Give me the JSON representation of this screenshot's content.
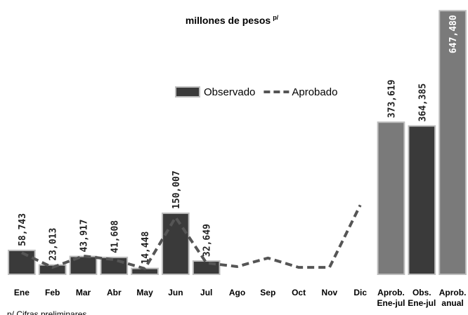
{
  "chart_data": {
    "type": "bar",
    "title": "millones de pesos",
    "title_note": "p/",
    "footnote": "p/ Cifras preliminares",
    "categories": [
      "Ene",
      "Feb",
      "Mar",
      "Abr",
      "May",
      "Jun",
      "Jul",
      "Ago",
      "Sep",
      "Oct",
      "Nov",
      "Dic",
      "Aprob. Ene-jul",
      "Obs. Ene-jul",
      "Aprob. anual"
    ],
    "ylim": [
      0,
      660000
    ],
    "legend": "top",
    "series": [
      {
        "name": "Observado",
        "type": "bar",
        "color": "#3a3a3a",
        "colors": [
          "#3a3a3a",
          "#3a3a3a",
          "#3a3a3a",
          "#3a3a3a",
          "#3a3a3a",
          "#3a3a3a",
          "#3a3a3a",
          null,
          null,
          null,
          null,
          null,
          "#7a7a7a",
          "#3a3a3a",
          "#7a7a7a"
        ],
        "values": [
          58743,
          23013,
          43917,
          41608,
          14448,
          150007,
          32649,
          null,
          null,
          null,
          null,
          null,
          373619,
          364385,
          647480
        ],
        "value_labels": [
          "58,743",
          "23,013",
          "43,917",
          "41,608",
          "14,448",
          "150,007",
          "32,649",
          null,
          null,
          null,
          null,
          null,
          "373,619",
          "364,385",
          "647,480"
        ]
      },
      {
        "name": "Aprobado",
        "type": "line",
        "color": "#555555",
        "values": [
          53000,
          17000,
          45000,
          36000,
          14000,
          140000,
          28000,
          19000,
          40000,
          17000,
          17000,
          170000,
          null,
          null,
          null
        ]
      }
    ]
  }
}
